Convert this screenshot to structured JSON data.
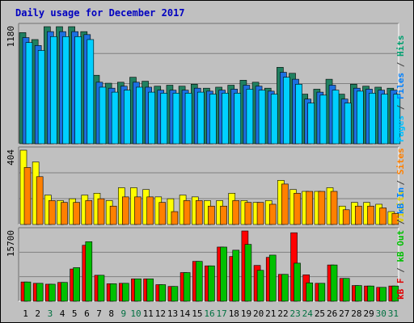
{
  "chart_data": [
    {
      "panel": "top",
      "type": "bar",
      "title": "Daily usage for December 2017",
      "y_max_label": "1180",
      "ylim": [
        0,
        1180
      ],
      "side_label": [
        {
          "text": "Pages",
          "color": "#00c0ff"
        },
        {
          "text": " / ",
          "color": "#404040"
        },
        {
          "text": "Files",
          "color": "#0080ff"
        },
        {
          "text": " / ",
          "color": "#404040"
        },
        {
          "text": "Hits",
          "color": "#00a070"
        }
      ],
      "series": [
        {
          "name": "Hits",
          "color": "#208060",
          "values": [
            1120,
            1050,
            1180,
            1180,
            1180,
            1130,
            690,
            610,
            620,
            670,
            630,
            580,
            590,
            580,
            600,
            560,
            570,
            590,
            640,
            620,
            560,
            770,
            710,
            500,
            550,
            650,
            500,
            600,
            580,
            570,
            560
          ]
        },
        {
          "name": "Files",
          "color": "#1c70e0",
          "values": [
            1070,
            990,
            1130,
            1130,
            1130,
            1100,
            620,
            560,
            580,
            620,
            570,
            540,
            540,
            540,
            560,
            530,
            540,
            550,
            590,
            580,
            530,
            720,
            650,
            450,
            520,
            590,
            450,
            560,
            550,
            540,
            540
          ]
        },
        {
          "name": "Pages",
          "color": "#00d0ff",
          "values": [
            1020,
            940,
            1080,
            1080,
            1080,
            1050,
            570,
            520,
            540,
            570,
            520,
            510,
            510,
            510,
            520,
            500,
            510,
            510,
            550,
            540,
            500,
            670,
            600,
            410,
            490,
            540,
            410,
            530,
            510,
            500,
            500
          ]
        }
      ]
    },
    {
      "panel": "middle",
      "type": "bar",
      "y_max_label": "404",
      "ylim": [
        0,
        404
      ],
      "side_label": [
        {
          "text": "Visits",
          "color": "#e0d000"
        },
        {
          "text": " / ",
          "color": "#404040"
        },
        {
          "text": "Sites",
          "color": "#ff8000"
        }
      ],
      "series": [
        {
          "name": "Visits",
          "color": "#ffff00",
          "values": [
            404,
            340,
            160,
            130,
            140,
            160,
            170,
            130,
            200,
            200,
            190,
            150,
            140,
            160,
            150,
            130,
            130,
            170,
            130,
            120,
            130,
            240,
            190,
            180,
            180,
            200,
            100,
            120,
            120,
            110,
            70
          ]
        },
        {
          "name": "Sites",
          "color": "#ff8000",
          "values": [
            310,
            260,
            130,
            120,
            120,
            130,
            140,
            100,
            150,
            150,
            150,
            120,
            70,
            130,
            130,
            100,
            100,
            130,
            120,
            120,
            110,
            220,
            170,
            180,
            180,
            180,
            80,
            100,
            100,
            90,
            60
          ]
        }
      ]
    },
    {
      "panel": "bottom",
      "type": "bar",
      "y_max_label": "15700",
      "ylim": [
        0,
        15700
      ],
      "side_label": [
        {
          "text": "kB F",
          "color": "#e00000"
        },
        {
          "text": " / ",
          "color": "#404040"
        },
        {
          "text": "kB Out",
          "color": "#00c000"
        },
        {
          "text": " / ",
          "color": "#404040"
        },
        {
          "text": "kB In",
          "color": "#0080ff"
        }
      ],
      "series": [
        {
          "name": "kB F",
          "color": "#ff0000",
          "values": [
            4300,
            4000,
            3800,
            4200,
            7200,
            12500,
            5800,
            3900,
            4000,
            5000,
            5000,
            3700,
            3300,
            6400,
            8900,
            7900,
            12100,
            10000,
            15700,
            8000,
            9800,
            6000,
            15300,
            5900,
            4000,
            8100,
            5100,
            3500,
            3400,
            3100,
            3400
          ]
        },
        {
          "name": "kB Out",
          "color": "#00c000",
          "values": [
            4300,
            4000,
            3800,
            4200,
            7500,
            13300,
            5800,
            3900,
            4000,
            5000,
            5000,
            3700,
            3300,
            6400,
            8900,
            7900,
            12100,
            11400,
            12700,
            6900,
            10300,
            6000,
            8500,
            4100,
            4000,
            8100,
            5100,
            3500,
            3400,
            3100,
            3400
          ]
        }
      ]
    }
  ],
  "x_labels": [
    {
      "text": "1",
      "color": "#000000"
    },
    {
      "text": "2",
      "color": "#000000"
    },
    {
      "text": "3",
      "color": "#007040"
    },
    {
      "text": "4",
      "color": "#000000"
    },
    {
      "text": "5",
      "color": "#000000"
    },
    {
      "text": "6",
      "color": "#000000"
    },
    {
      "text": "7",
      "color": "#000000"
    },
    {
      "text": "8",
      "color": "#000000"
    },
    {
      "text": "9",
      "color": "#007040"
    },
    {
      "text": "10",
      "color": "#007040"
    },
    {
      "text": "11",
      "color": "#000000"
    },
    {
      "text": "12",
      "color": "#000000"
    },
    {
      "text": "13",
      "color": "#000000"
    },
    {
      "text": "14",
      "color": "#000000"
    },
    {
      "text": "15",
      "color": "#000000"
    },
    {
      "text": "16",
      "color": "#007040"
    },
    {
      "text": "17",
      "color": "#007040"
    },
    {
      "text": "18",
      "color": "#000000"
    },
    {
      "text": "19",
      "color": "#000000"
    },
    {
      "text": "20",
      "color": "#000000"
    },
    {
      "text": "21",
      "color": "#000000"
    },
    {
      "text": "22",
      "color": "#000000"
    },
    {
      "text": "23",
      "color": "#007040"
    },
    {
      "text": "24",
      "color": "#007040"
    },
    {
      "text": "25",
      "color": "#000000"
    },
    {
      "text": "26",
      "color": "#000000"
    },
    {
      "text": "27",
      "color": "#000000"
    },
    {
      "text": "28",
      "color": "#000000"
    },
    {
      "text": "29",
      "color": "#000000"
    },
    {
      "text": "30",
      "color": "#007040"
    },
    {
      "text": "31",
      "color": "#007040"
    }
  ]
}
